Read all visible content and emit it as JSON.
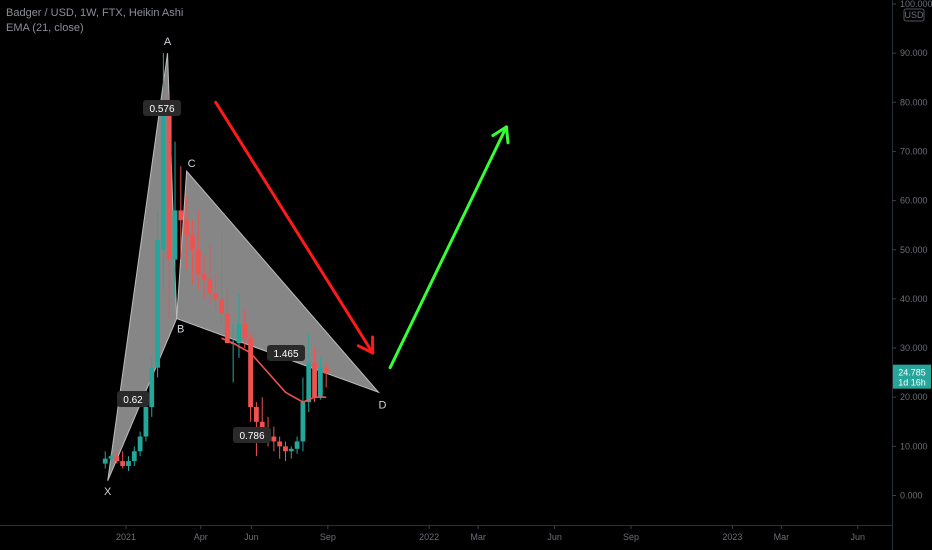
{
  "legend": {
    "title": "Badger / USD, 1W, FTX, Heikin Ashi",
    "indicator": "EMA (21, close)"
  },
  "currency_badge": "USD",
  "price_label": {
    "value": "24.785",
    "countdown": "1d 16h",
    "price": 24.785
  },
  "colors": {
    "up": "#26a69a",
    "down": "#ef5350",
    "ema": "#ef5350",
    "pattern_fill": "#9e9e9e",
    "arrow_down": "#ff1a1a",
    "arrow_up": "#33ff33",
    "price_badge": "#26a69a"
  },
  "chart_data": {
    "type": "candlestick",
    "y_axis": {
      "ticks": [
        100000,
        90000,
        80000,
        70000,
        60000,
        50000,
        40000,
        30000,
        20000,
        10000,
        0
      ],
      "labels": [
        "100.000",
        "90.000",
        "80.000",
        "70.000",
        "60.000",
        "50.000",
        "40.000",
        "30.000",
        "20.000",
        "10.000",
        "0.000"
      ],
      "range": [
        0,
        100
      ]
    },
    "x_axis": {
      "labels": [
        "2021",
        "Apr",
        "Jun",
        "Sep",
        "2022",
        "Mar",
        "Jun",
        "Sep",
        "2023",
        "Mar",
        "Jun"
      ],
      "range": [
        "2020-11-23",
        "2023-06-30"
      ]
    },
    "candles": [
      {
        "date": "2020-12-07",
        "open": 6.5,
        "high": 9.0,
        "low": 5.5,
        "close": 7.5
      },
      {
        "date": "2020-12-14",
        "open": 7.5,
        "high": 8.5,
        "low": 6.0,
        "close": 8.0
      },
      {
        "date": "2020-12-21",
        "open": 8.0,
        "high": 8.8,
        "low": 6.5,
        "close": 7.0
      },
      {
        "date": "2020-12-28",
        "open": 7.0,
        "high": 9.0,
        "low": 5.5,
        "close": 6.0
      },
      {
        "date": "2021-01-04",
        "open": 6.0,
        "high": 8.0,
        "low": 5.0,
        "close": 7.0
      },
      {
        "date": "2021-01-11",
        "open": 7.0,
        "high": 10.0,
        "low": 6.0,
        "close": 9.0
      },
      {
        "date": "2021-01-18",
        "open": 9.0,
        "high": 13.0,
        "low": 8.0,
        "close": 12.0
      },
      {
        "date": "2021-01-25",
        "open": 12.0,
        "high": 20.0,
        "low": 11.0,
        "close": 18.0
      },
      {
        "date": "2021-02-01",
        "open": 18.0,
        "high": 28.0,
        "low": 16.0,
        "close": 26.0
      },
      {
        "date": "2021-02-08",
        "open": 26.0,
        "high": 58.0,
        "low": 24.0,
        "close": 52.0
      },
      {
        "date": "2021-02-15",
        "open": 50.0,
        "high": 90.0,
        "low": 42.0,
        "close": 80.0
      },
      {
        "date": "2021-02-22",
        "open": 78.0,
        "high": 82.0,
        "low": 36.0,
        "close": 48.0
      },
      {
        "date": "2021-03-01",
        "open": 48.0,
        "high": 72.0,
        "low": 40.0,
        "close": 58.0
      },
      {
        "date": "2021-03-08",
        "open": 58.0,
        "high": 67.0,
        "low": 48.0,
        "close": 56.0
      },
      {
        "date": "2021-03-15",
        "open": 56.0,
        "high": 61.0,
        "low": 46.0,
        "close": 53.0
      },
      {
        "date": "2021-03-22",
        "open": 53.0,
        "high": 56.0,
        "low": 43.0,
        "close": 50.0
      },
      {
        "date": "2021-03-29",
        "open": 50.0,
        "high": 58.0,
        "low": 42.0,
        "close": 45.0
      },
      {
        "date": "2021-04-05",
        "open": 45.0,
        "high": 49.0,
        "low": 40.0,
        "close": 44.0
      },
      {
        "date": "2021-04-12",
        "open": 44.0,
        "high": 51.0,
        "low": 39.0,
        "close": 41.0
      },
      {
        "date": "2021-04-19",
        "open": 41.0,
        "high": 45.0,
        "low": 38.0,
        "close": 40.0
      },
      {
        "date": "2021-04-26",
        "open": 40.0,
        "high": 54.0,
        "low": 35.0,
        "close": 37.0
      },
      {
        "date": "2021-05-03",
        "open": 37.0,
        "high": 42.0,
        "low": 31.0,
        "close": 31.0
      },
      {
        "date": "2021-05-10",
        "open": 31.0,
        "high": 35.0,
        "low": 23.0,
        "close": 31.0
      },
      {
        "date": "2021-05-17",
        "open": 31.0,
        "high": 41.0,
        "low": 28.0,
        "close": 35.0
      },
      {
        "date": "2021-05-24",
        "open": 35.0,
        "high": 38.0,
        "low": 30.0,
        "close": 32.0
      },
      {
        "date": "2021-05-31",
        "open": 32.0,
        "high": 33.0,
        "low": 15.0,
        "close": 18.0
      },
      {
        "date": "2021-06-07",
        "open": 18.0,
        "high": 19.0,
        "low": 8.0,
        "close": 15.0
      },
      {
        "date": "2021-06-14",
        "open": 15.0,
        "high": 20.0,
        "low": 12.0,
        "close": 13.0
      },
      {
        "date": "2021-06-21",
        "open": 13.0,
        "high": 16.0,
        "low": 10.0,
        "close": 12.0
      },
      {
        "date": "2021-06-28",
        "open": 12.0,
        "high": 14.0,
        "low": 9.0,
        "close": 11.0
      },
      {
        "date": "2021-07-05",
        "open": 11.0,
        "high": 12.0,
        "low": 7.5,
        "close": 10.0
      },
      {
        "date": "2021-07-12",
        "open": 10.0,
        "high": 11.0,
        "low": 7.0,
        "close": 9.0
      },
      {
        "date": "2021-07-19",
        "open": 9.0,
        "high": 10.0,
        "low": 7.5,
        "close": 9.5
      },
      {
        "date": "2021-07-26",
        "open": 9.5,
        "high": 12.0,
        "low": 8.5,
        "close": 11.0
      },
      {
        "date": "2021-08-02",
        "open": 11.0,
        "high": 24.0,
        "low": 9.0,
        "close": 19.0
      },
      {
        "date": "2021-08-09",
        "open": 19.0,
        "high": 33.0,
        "low": 17.0,
        "close": 27.0
      },
      {
        "date": "2021-08-16",
        "open": 27.0,
        "high": 30.0,
        "low": 19.0,
        "close": 20.0
      },
      {
        "date": "2021-08-23",
        "open": 20.0,
        "high": 28.0,
        "low": 19.5,
        "close": 26.0
      },
      {
        "date": "2021-08-30",
        "open": 26.0,
        "high": 27.0,
        "low": 22.0,
        "close": 24.785
      }
    ],
    "ema": {
      "name": "EMA (21, close)",
      "points": [
        {
          "date": "2021-04-26",
          "value": 32.0
        },
        {
          "date": "2021-05-10",
          "value": 31.0
        },
        {
          "date": "2021-05-31",
          "value": 29.0
        },
        {
          "date": "2021-06-21",
          "value": 25.0
        },
        {
          "date": "2021-07-12",
          "value": 21.0
        },
        {
          "date": "2021-08-02",
          "value": 19.0
        },
        {
          "date": "2021-08-16",
          "value": 20.0
        },
        {
          "date": "2021-08-30",
          "value": 20.0
        }
      ]
    },
    "harmonic_pattern": {
      "points": [
        {
          "label": "X",
          "date": "2020-12-10",
          "price": 3.0
        },
        {
          "label": "A",
          "date": "2021-02-20",
          "price": 90.0
        },
        {
          "label": "B",
          "date": "2021-03-03",
          "price": 36.0
        },
        {
          "label": "C",
          "date": "2021-03-15",
          "price": 66.0
        },
        {
          "label": "D",
          "date": "2021-11-01",
          "price": 21.0
        }
      ],
      "ratios": [
        {
          "text": "0.576",
          "anchor": "A"
        },
        {
          "text": "0.62",
          "anchor": "XB"
        },
        {
          "text": "1.465",
          "anchor": "CD"
        },
        {
          "text": "0.786",
          "anchor": "BD"
        }
      ]
    },
    "projection_arrows": [
      {
        "name": "bearish",
        "from": {
          "date": "2021-04-19",
          "price": 80
        },
        "to": {
          "date": "2021-10-25",
          "price": 29
        }
      },
      {
        "name": "bullish",
        "from": {
          "date": "2021-11-15",
          "price": 26
        },
        "to": {
          "date": "2022-04-04",
          "price": 75
        }
      }
    ]
  }
}
